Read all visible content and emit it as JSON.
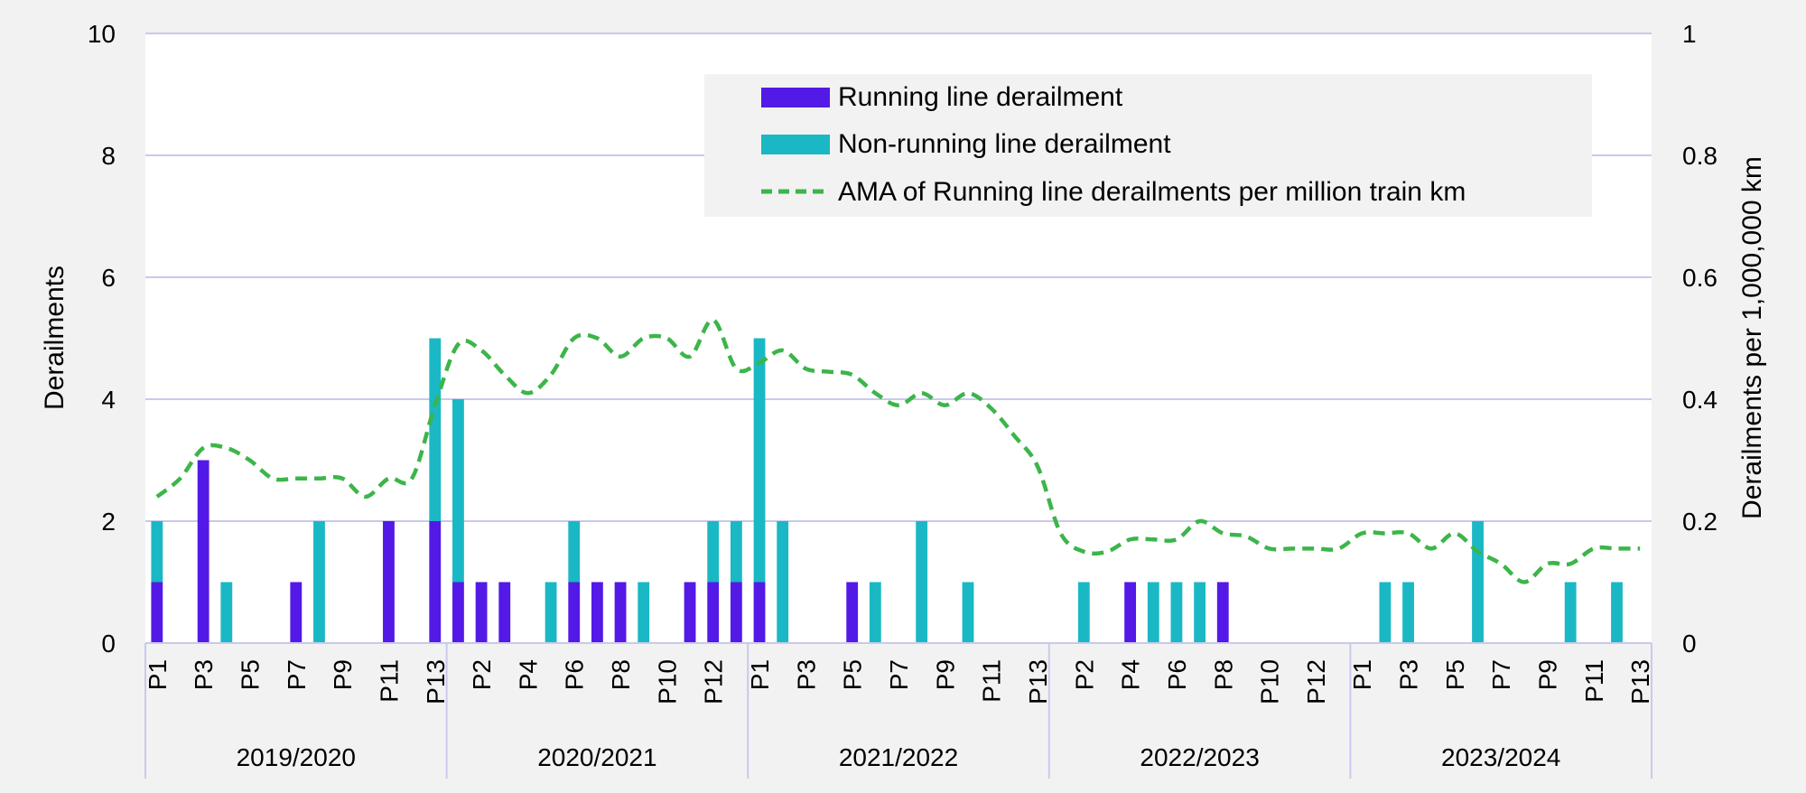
{
  "chart_data": {
    "type": "bar",
    "title": "",
    "y_left": {
      "label": "Derailments",
      "ylim": [
        0,
        10
      ],
      "ticks": [
        "0",
        "2",
        "4",
        "6",
        "8",
        "10"
      ]
    },
    "y_right": {
      "label": "Derailments per 1,000,000 km",
      "ylim": [
        0,
        1
      ],
      "ticks": [
        "0",
        "0.2",
        "0.4",
        "0.6",
        "0.8",
        "1"
      ]
    },
    "groups": [
      "2019/2020",
      "2020/2021",
      "2021/2022",
      "2022/2023",
      "2023/2024"
    ],
    "periods": [
      "P1",
      "P2",
      "P3",
      "P4",
      "P5",
      "P6",
      "P7",
      "P8",
      "P9",
      "P10",
      "P11",
      "P12",
      "P13"
    ],
    "period_tick_labels": [
      "P1",
      "P3",
      "P5",
      "P7",
      "P9",
      "P11",
      "P13",
      "P2",
      "P4",
      "P6",
      "P8",
      "P10",
      "P12",
      "P1",
      "P3",
      "P5",
      "P7",
      "P9",
      "P11",
      "P13",
      "P2",
      "P4",
      "P6",
      "P8",
      "P10",
      "P12",
      "P1",
      "P3",
      "P5",
      "P7",
      "P9",
      "P11",
      "P13"
    ],
    "grid": true,
    "legend_position": "top-right",
    "series": [
      {
        "name": "Running line derailment",
        "kind": "bar",
        "color": "#5319e7",
        "values": [
          1,
          0,
          3,
          0,
          0,
          0,
          1,
          0,
          0,
          0,
          2,
          0,
          2,
          1,
          1,
          1,
          0,
          0,
          1,
          1,
          1,
          0,
          0,
          1,
          1,
          1,
          1,
          0,
          0,
          0,
          1,
          0,
          0,
          0,
          0,
          0,
          0,
          0,
          0,
          0,
          0,
          0,
          1,
          0,
          0,
          0,
          1,
          0,
          0,
          0,
          0,
          0,
          0,
          0,
          0,
          0,
          0,
          0,
          0,
          0,
          0,
          0,
          0,
          0,
          0
        ]
      },
      {
        "name": "Non-running line derailment",
        "kind": "bar",
        "color": "#1ab8c4",
        "values": [
          1,
          0,
          0,
          1,
          0,
          0,
          0,
          2,
          0,
          0,
          0,
          0,
          3,
          3,
          0,
          0,
          0,
          1,
          1,
          0,
          0,
          1,
          0,
          0,
          1,
          1,
          4,
          2,
          0,
          0,
          0,
          1,
          0,
          2,
          0,
          1,
          0,
          0,
          0,
          0,
          1,
          0,
          0,
          1,
          1,
          1,
          0,
          0,
          0,
          0,
          0,
          0,
          0,
          1,
          1,
          0,
          0,
          2,
          0,
          0,
          0,
          1,
          0,
          1,
          0
        ]
      },
      {
        "name": "AMA of Running line derailments per million train km",
        "kind": "line",
        "axis": "right",
        "color": "#3cb54a",
        "values": [
          0.24,
          0.27,
          0.32,
          0.32,
          0.3,
          0.27,
          0.27,
          0.27,
          0.27,
          0.24,
          0.27,
          0.27,
          0.39,
          0.49,
          0.48,
          0.44,
          0.41,
          0.44,
          0.5,
          0.5,
          0.47,
          0.5,
          0.5,
          0.47,
          0.53,
          0.45,
          0.46,
          0.48,
          0.45,
          0.445,
          0.44,
          0.41,
          0.39,
          0.41,
          0.39,
          0.41,
          0.385,
          0.34,
          0.29,
          0.18,
          0.15,
          0.15,
          0.17,
          0.17,
          0.17,
          0.2,
          0.18,
          0.175,
          0.155,
          0.155,
          0.155,
          0.155,
          0.18,
          0.18,
          0.18,
          0.155,
          0.18,
          0.15,
          0.13,
          0.1,
          0.13,
          0.13,
          0.155,
          0.155,
          0.155
        ]
      }
    ]
  }
}
